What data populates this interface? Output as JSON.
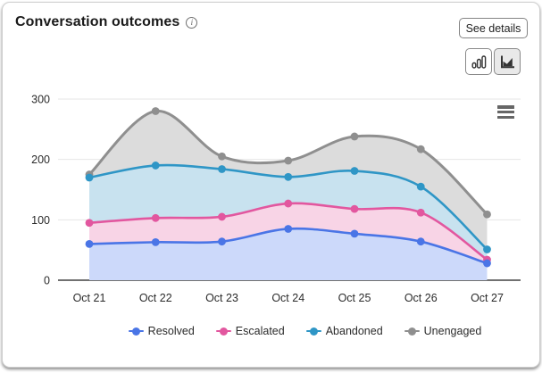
{
  "header": {
    "title": "Conversation outcomes",
    "info_icon": "i",
    "see_details_label": "See details"
  },
  "toolbar": {
    "bar_chart_icon": "bar-chart-icon",
    "area_chart_icon": "area-chart-icon",
    "selected_view": "area",
    "menu_icon": "hamburger-menu-icon"
  },
  "chart_data": {
    "type": "area",
    "title": "Conversation outcomes",
    "categories": [
      "Oct 21",
      "Oct 22",
      "Oct 23",
      "Oct 24",
      "Oct 25",
      "Oct 26",
      "Oct 27"
    ],
    "series": [
      {
        "name": "Resolved",
        "color": "#4a75e6",
        "fill": "#ccd9fa",
        "values": [
          60,
          63,
          64,
          85,
          77,
          64,
          28
        ]
      },
      {
        "name": "Escalated",
        "color": "#e2579f",
        "fill": "#f8d4e6",
        "values": [
          95,
          103,
          105,
          127,
          118,
          112,
          34
        ]
      },
      {
        "name": "Abandoned",
        "color": "#2f96c6",
        "fill": "#c8e2ef",
        "values": [
          170,
          190,
          184,
          171,
          181,
          155,
          51
        ]
      },
      {
        "name": "Unengaged",
        "color": "#8f8f8f",
        "fill": "#dcdcdc",
        "values": [
          175,
          280,
          205,
          198,
          238,
          217,
          109
        ]
      }
    ],
    "ylim": [
      0,
      300
    ],
    "yticks": [
      0,
      100,
      200,
      300
    ],
    "grid": "horizontal",
    "legend_position": "bottom",
    "colors": {
      "grid_line": "#e6e6e6",
      "axis_line": "#424242",
      "tick_label": "#2b2b2b"
    }
  }
}
